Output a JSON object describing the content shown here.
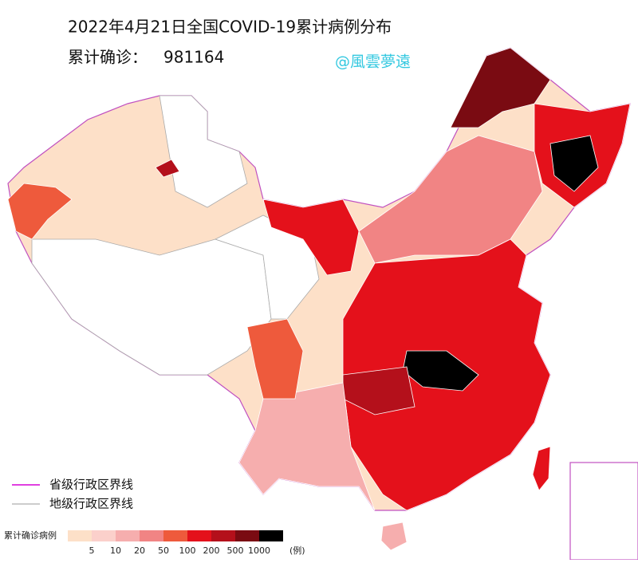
{
  "header": {
    "title": "2022年4月21日全国COVID-19累计病例分布",
    "total_label": "累计确诊：",
    "total_value": "981164",
    "watermark": "@風雲夢遠"
  },
  "boundary_legend": [
    {
      "label": "省级行政区界线",
      "color": "#e040e0"
    },
    {
      "label": "地级行政区界线",
      "color": "#999999"
    }
  ],
  "scale": {
    "label": "累计确诊病例",
    "colors": [
      "#fde0c8",
      "#fbd0cb",
      "#f6aeae",
      "#f18484",
      "#ee5a3c",
      "#e4111b",
      "#b4101b",
      "#7a0b12",
      "#000000"
    ],
    "breaks": [
      "5",
      "10",
      "20",
      "50",
      "100",
      "200",
      "500",
      "1000"
    ],
    "unit": "(例)"
  }
}
